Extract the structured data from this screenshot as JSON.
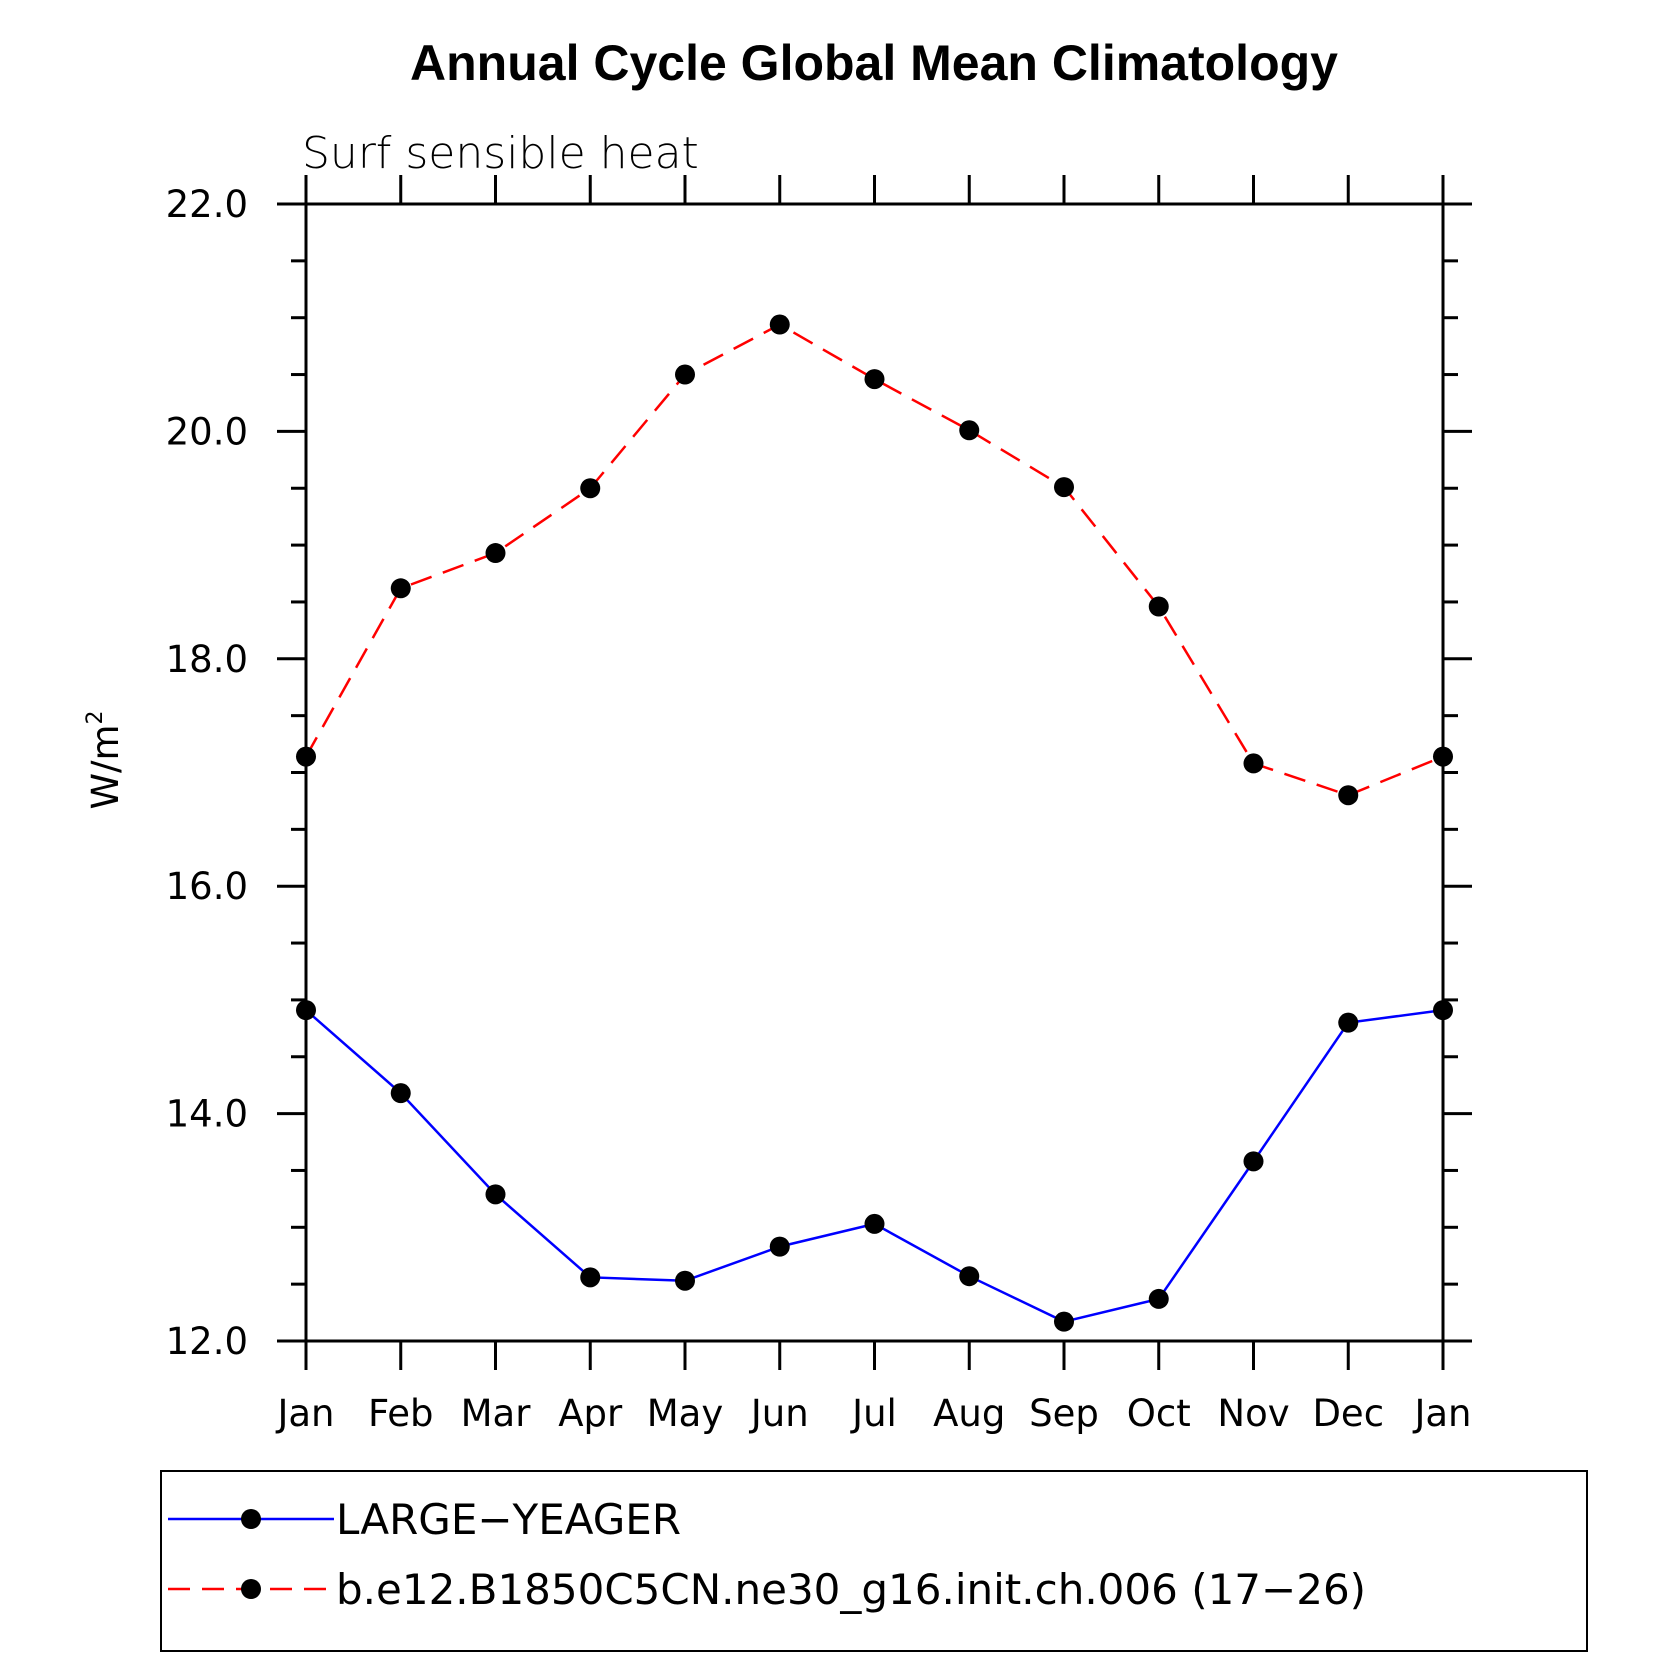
{
  "chart_data": {
    "type": "line",
    "title": "Annual Cycle Global Mean Climatology",
    "subtitle": "Surf sensible heat",
    "ylabel_base": "W/m",
    "ylabel_sup": "2",
    "xlabel": "",
    "ylim": [
      12.0,
      22.0
    ],
    "yticks": [
      12.0,
      14.0,
      16.0,
      18.0,
      20.0,
      22.0
    ],
    "ytick_labels": [
      "12.0",
      "14.0",
      "16.0",
      "18.0",
      "20.0",
      "22.0"
    ],
    "categories": [
      "Jan",
      "Feb",
      "Mar",
      "Apr",
      "May",
      "Jun",
      "Jul",
      "Aug",
      "Sep",
      "Oct",
      "Nov",
      "Dec",
      "Jan"
    ],
    "grid": false,
    "legend_position": "bottom",
    "series": [
      {
        "name": "LARGE−YEAGER",
        "color": "#0000ff",
        "line_style": "solid",
        "marker": "filled-circle",
        "marker_color": "#000000",
        "values": [
          14.91,
          14.18,
          13.29,
          12.56,
          12.53,
          12.83,
          13.03,
          12.57,
          12.17,
          12.37,
          13.58,
          14.8,
          14.91
        ]
      },
      {
        "name": "b.e12.B1850C5CN.ne30_g16.init.ch.006 (17−26)",
        "color": "#ff0000",
        "line_style": "dashed",
        "marker": "filled-circle",
        "marker_color": "#000000",
        "values": [
          17.14,
          18.62,
          18.93,
          19.5,
          20.5,
          20.94,
          20.46,
          20.01,
          19.51,
          18.46,
          17.08,
          16.8,
          17.14
        ]
      }
    ]
  }
}
